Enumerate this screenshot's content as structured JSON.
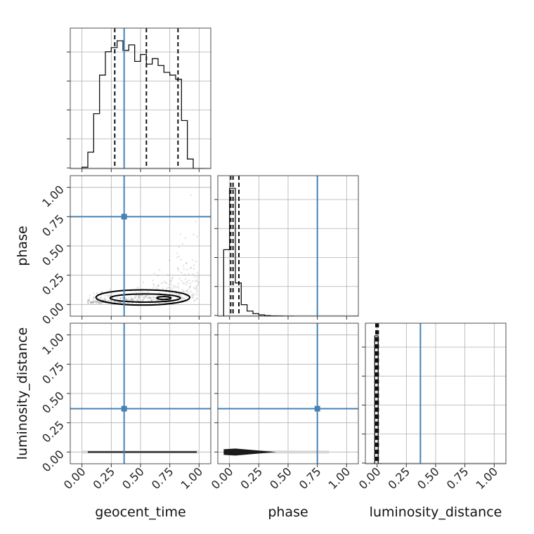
{
  "chart_data": {
    "type": "corner",
    "parameters": [
      "geocent_time",
      "phase",
      "luminosity_distance"
    ],
    "colors": {
      "injection": "#4682b4",
      "histogram": "#000000",
      "grid": "#b0b0b0"
    },
    "axis_ranges": {
      "geocent_time": [
        -0.1,
        1.1
      ],
      "phase": [
        -0.1,
        1.1
      ],
      "luminosity_distance": [
        -0.1,
        1.1
      ]
    },
    "tick_labels": [
      "0.00",
      "0.25",
      "0.50",
      "0.75",
      "1.00"
    ],
    "tick_values": [
      0,
      0.25,
      0.5,
      0.75,
      1.0
    ],
    "injection": {
      "geocent_time": 0.36,
      "phase": 0.75,
      "luminosity_distance": 0.37
    },
    "grid": true,
    "marginals": {
      "geocent_time": {
        "bin_edges": [
          0.0,
          0.05,
          0.1,
          0.15,
          0.2,
          0.25,
          0.3,
          0.35,
          0.4,
          0.45,
          0.5,
          0.55,
          0.6,
          0.65,
          0.7,
          0.75,
          0.8,
          0.85,
          0.9,
          0.95,
          1.0,
          1.05
        ],
        "counts": [
          0.01,
          0.12,
          0.4,
          0.68,
          0.85,
          0.88,
          0.93,
          0.86,
          0.9,
          0.78,
          0.83,
          0.76,
          0.8,
          0.75,
          0.7,
          0.68,
          0.65,
          0.35,
          0.07,
          0.0,
          0.0
        ],
        "quantiles": [
          0.28,
          0.55,
          0.82
        ]
      },
      "phase": {
        "bin_edges": [
          -0.05,
          0.0,
          0.05,
          0.1,
          0.15,
          0.2,
          0.25,
          0.3,
          0.35,
          0.4,
          0.45,
          0.5,
          0.55
        ],
        "counts": [
          0.52,
          1.0,
          0.26,
          0.09,
          0.04,
          0.02,
          0.01,
          0.005,
          0.002,
          0.001,
          0.0,
          0.0
        ],
        "quantiles": [
          0.01,
          0.03,
          0.08
        ]
      },
      "luminosity_distance": {
        "bin_edges": [
          -0.05,
          -0.02,
          0.01,
          0.04
        ],
        "counts": [
          0.0,
          1.0,
          0.0
        ],
        "quantiles": [
          -0.01,
          0.0,
          0.01
        ]
      }
    },
    "joint_2d": [
      {
        "x_param": "geocent_time",
        "y_param": "phase",
        "density_center": {
          "x": 0.58,
          "y": 0.06
        },
        "contour_levels": [
          {
            "cx": 0.52,
            "cy": 0.06,
            "rx": 0.4,
            "ry": 0.065
          },
          {
            "cx": 0.54,
            "cy": 0.055,
            "rx": 0.3,
            "ry": 0.035
          },
          {
            "cx": 0.7,
            "cy": 0.055,
            "rx": 0.06,
            "ry": 0.012
          }
        ]
      },
      {
        "x_param": "geocent_time",
        "y_param": "luminosity_distance",
        "density_band": {
          "x_min": 0.0,
          "x_max": 1.0,
          "y": 0.0,
          "thickness": 0.012
        }
      },
      {
        "x_param": "phase",
        "y_param": "luminosity_distance",
        "density_band": {
          "x_min": -0.05,
          "x_max": 0.85,
          "y": 0.0,
          "thickness": 0.012,
          "peak_x": 0.05
        }
      }
    ]
  }
}
